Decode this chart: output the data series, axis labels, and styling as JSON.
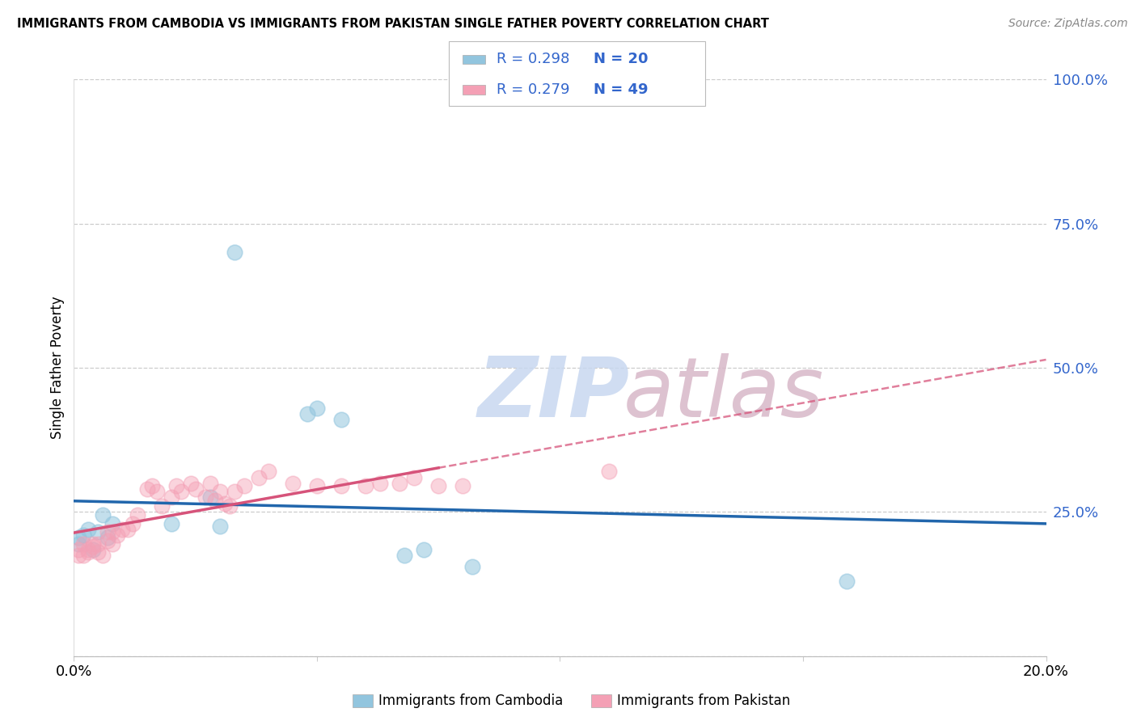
{
  "title": "IMMIGRANTS FROM CAMBODIA VS IMMIGRANTS FROM PAKISTAN SINGLE FATHER POVERTY CORRELATION CHART",
  "source": "Source: ZipAtlas.com",
  "ylabel": "Single Father Poverty",
  "xlim": [
    0.0,
    0.2
  ],
  "ylim": [
    0.0,
    1.0
  ],
  "ytick_vals": [
    0.0,
    0.25,
    0.5,
    0.75,
    1.0
  ],
  "ytick_labels": [
    "",
    "25.0%",
    "50.0%",
    "75.0%",
    "100.0%"
  ],
  "xtick_vals": [
    0.0,
    0.05,
    0.1,
    0.15,
    0.2
  ],
  "xtick_labels": [
    "0.0%",
    "",
    "",
    "",
    "20.0%"
  ],
  "cambodia_color": "#92c5de",
  "pakistan_color": "#f4a0b5",
  "trend_cambodia_color": "#2166ac",
  "trend_pakistan_color": "#d6537a",
  "legend_label_color": "#3366cc",
  "legend_R_cambodia": "R = 0.298",
  "legend_N_cambodia": "N = 20",
  "legend_R_pakistan": "R = 0.279",
  "legend_N_pakistan": "N = 49",
  "cambodia_x": [
    0.001,
    0.001,
    0.002,
    0.003,
    0.004,
    0.005,
    0.006,
    0.007,
    0.008,
    0.02,
    0.028,
    0.03,
    0.033,
    0.048,
    0.05,
    0.055,
    0.068,
    0.072,
    0.082,
    0.159
  ],
  "cambodia_y": [
    0.195,
    0.205,
    0.21,
    0.22,
    0.185,
    0.215,
    0.245,
    0.205,
    0.23,
    0.23,
    0.275,
    0.225,
    0.7,
    0.42,
    0.43,
    0.41,
    0.175,
    0.185,
    0.155,
    0.13
  ],
  "pakistan_x": [
    0.001,
    0.001,
    0.002,
    0.002,
    0.003,
    0.003,
    0.004,
    0.004,
    0.005,
    0.005,
    0.006,
    0.007,
    0.007,
    0.008,
    0.008,
    0.009,
    0.01,
    0.011,
    0.012,
    0.013,
    0.015,
    0.016,
    0.017,
    0.018,
    0.02,
    0.021,
    0.022,
    0.024,
    0.025,
    0.027,
    0.028,
    0.029,
    0.03,
    0.031,
    0.032,
    0.033,
    0.035,
    0.038,
    0.04,
    0.045,
    0.05,
    0.055,
    0.06,
    0.063,
    0.067,
    0.07,
    0.075,
    0.08,
    0.11
  ],
  "pakistan_y": [
    0.185,
    0.175,
    0.175,
    0.195,
    0.18,
    0.185,
    0.195,
    0.19,
    0.18,
    0.195,
    0.175,
    0.2,
    0.215,
    0.195,
    0.215,
    0.21,
    0.22,
    0.22,
    0.23,
    0.245,
    0.29,
    0.295,
    0.285,
    0.26,
    0.275,
    0.295,
    0.285,
    0.3,
    0.29,
    0.275,
    0.3,
    0.27,
    0.285,
    0.265,
    0.26,
    0.285,
    0.295,
    0.31,
    0.32,
    0.3,
    0.295,
    0.295,
    0.295,
    0.3,
    0.3,
    0.31,
    0.295,
    0.295,
    0.32
  ],
  "watermark_zip_color": "#c8d8f0",
  "watermark_atlas_color": "#d8b8c8",
  "background_color": "#ffffff",
  "grid_color": "#cccccc",
  "bottom_legend_label_cambodia": "Immigrants from Cambodia",
  "bottom_legend_label_pakistan": "Immigrants from Pakistan"
}
